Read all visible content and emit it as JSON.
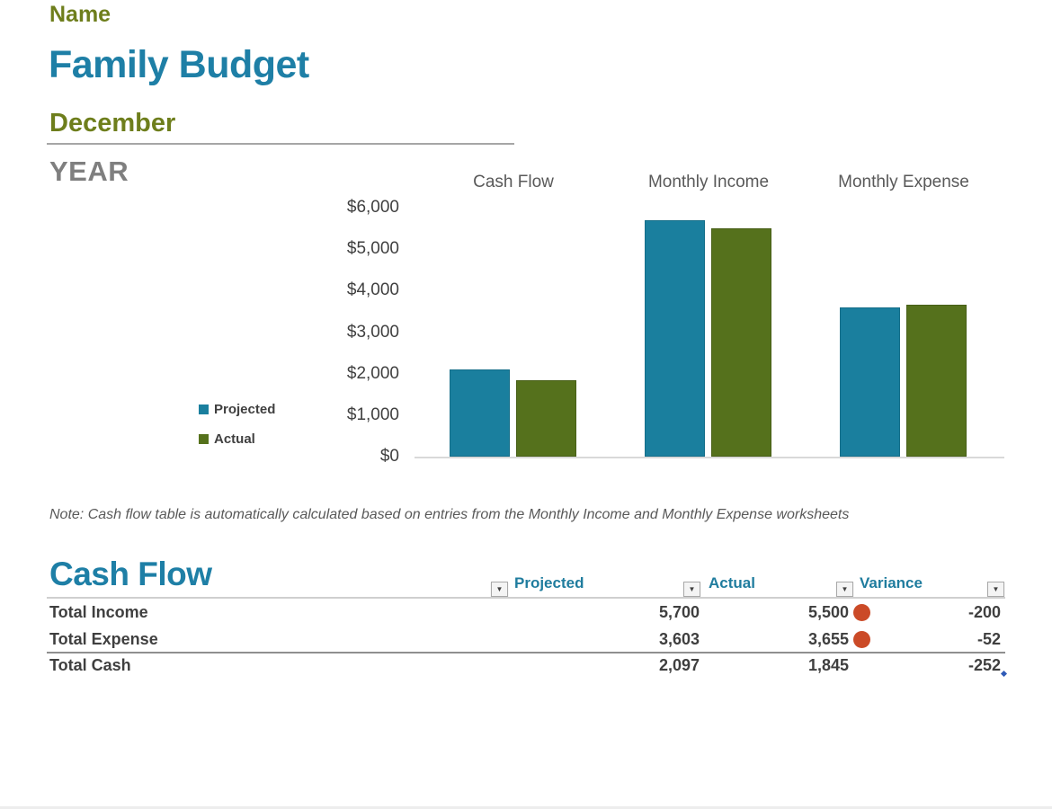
{
  "header": {
    "name_label": "Name",
    "title": "Family Budget",
    "month": "December",
    "year_label": "YEAR"
  },
  "chart_data": {
    "type": "bar",
    "title": "",
    "categories": [
      "Cash Flow",
      "Monthly Income",
      "Monthly Expense"
    ],
    "series": [
      {
        "name": "Projected",
        "color": "#1A7F9E",
        "border_color": "#156E89",
        "values": [
          2097,
          5700,
          3603
        ]
      },
      {
        "name": "Actual",
        "color": "#55711C",
        "border_color": "#475F17",
        "values": [
          1845,
          5500,
          3655
        ]
      }
    ],
    "y_tick_labels": [
      "$6,000",
      "$5,000",
      "$4,000",
      "$3,000",
      "$2,000",
      "$1,000",
      "$0"
    ],
    "y_tick_values": [
      6000,
      5000,
      4000,
      3000,
      2000,
      1000,
      0
    ],
    "ylim": [
      0,
      6000
    ],
    "legend_position": "left",
    "grid": false
  },
  "note": "Note: Cash flow table is automatically calculated based on entries from the Monthly Income and Monthly Expense worksheets",
  "cash_flow_table": {
    "title": "Cash Flow",
    "columns": [
      "Projected",
      "Actual",
      "Variance"
    ],
    "rows": [
      {
        "label": "Total Income",
        "projected": "5,700",
        "actual": "5,500",
        "variance": "-200"
      },
      {
        "label": "Total Expense",
        "projected": "3,603",
        "actual": "3,655",
        "variance": "-52"
      },
      {
        "label": "Total Cash",
        "projected": "2,097",
        "actual": "1,845",
        "variance": "-252"
      }
    ],
    "status_dot_color": "#CB4A27"
  }
}
